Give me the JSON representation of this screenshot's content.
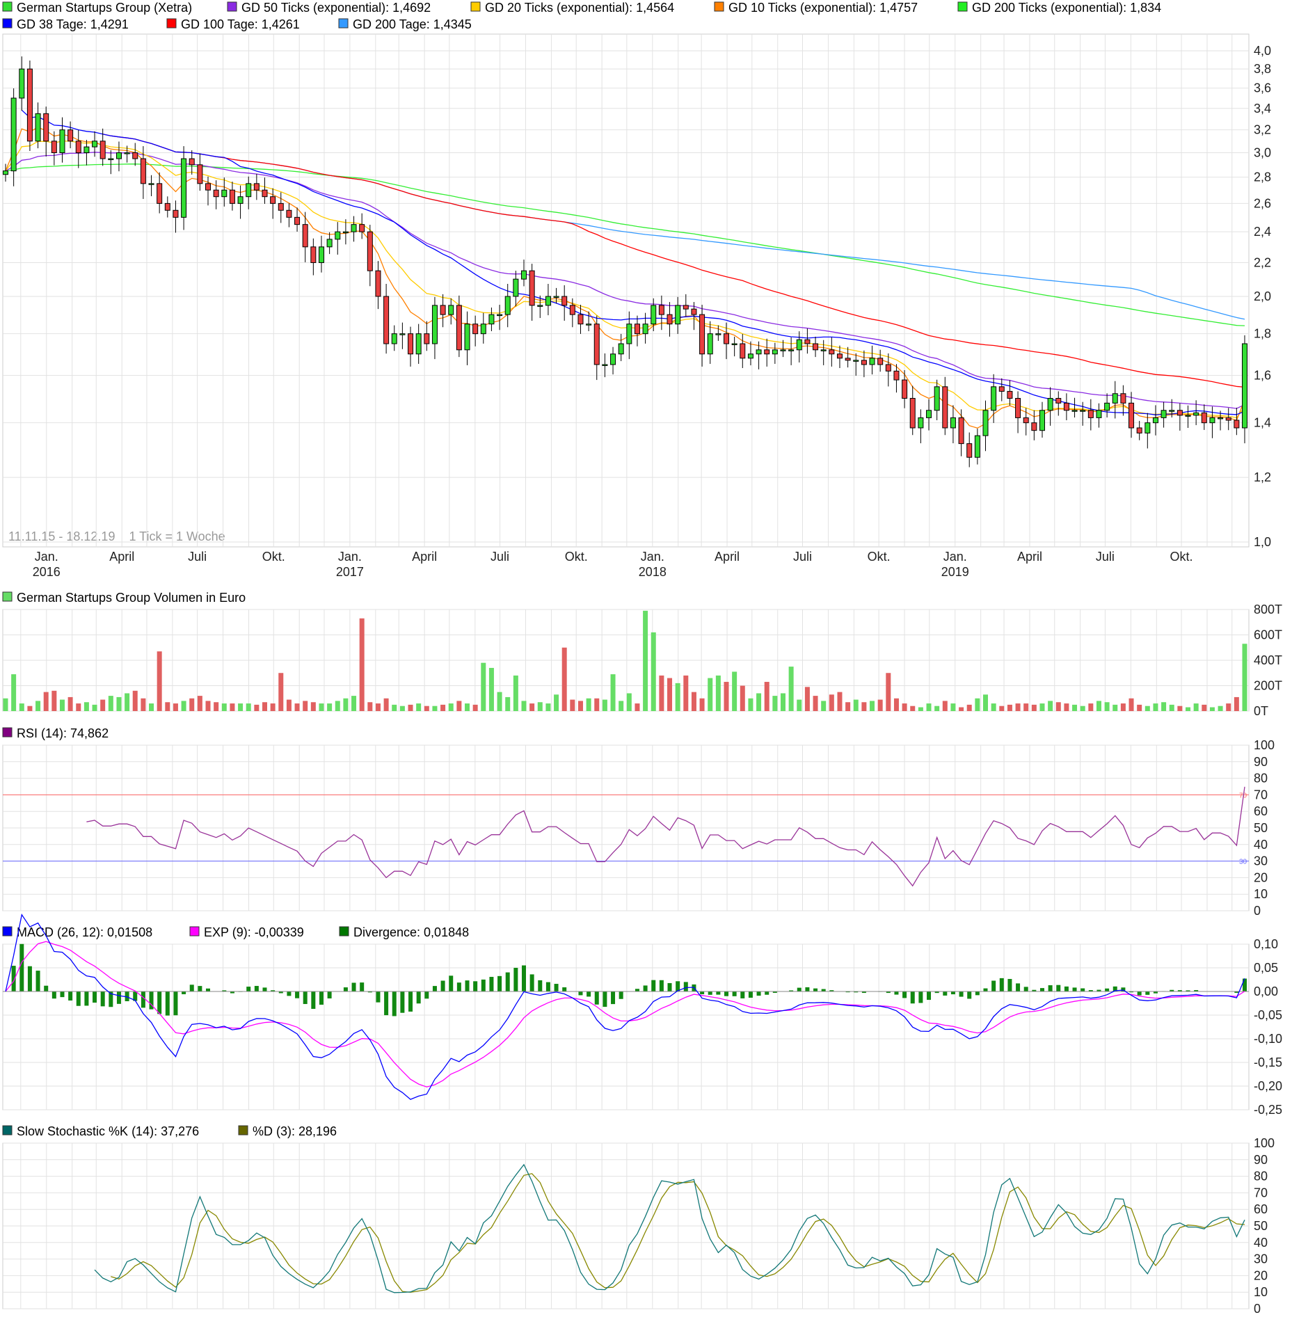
{
  "legend_main": [
    {
      "label": "German Startups Group (Xetra)",
      "color": "#33dd33"
    },
    {
      "label": "GD 50 Ticks (exponential): 1,4692",
      "color": "#8a2be2"
    },
    {
      "label": "GD 20 Ticks (exponential): 1,4564",
      "color": "#ffcc00"
    },
    {
      "label": "GD 10 Ticks (exponential): 1,4757",
      "color": "#ff8000"
    },
    {
      "label": "GD 200 Ticks (exponential): 1,834",
      "color": "#22ee22"
    },
    {
      "label": "GD 38 Tage: 1,4291",
      "color": "#0000ff"
    },
    {
      "label": "GD 100 Tage: 1,4261",
      "color": "#ff0000"
    },
    {
      "label": "GD 200 Tage: 1,4345",
      "color": "#3399ff"
    }
  ],
  "range_text": "11.11.15 - 18.12.19    1 Tick = 1 Woche",
  "legend_volume": {
    "label": "German Startups Group Volumen in Euro",
    "color": "#66dd66"
  },
  "legend_rsi": {
    "label": "RSI (14): 74,862",
    "color": "#800080"
  },
  "legend_macd": [
    {
      "label": "MACD (26, 12): 0,01508",
      "color": "#0000ff"
    },
    {
      "label": "EXP (9): -0,00339",
      "color": "#ff00ff"
    },
    {
      "label": "Divergence: 0,01848",
      "color": "#007700"
    }
  ],
  "legend_stoch": [
    {
      "label": "Slow Stochastic %K (14): 37,276",
      "color": "#006666"
    },
    {
      "label": "%D (3): 28,196",
      "color": "#666600"
    }
  ],
  "chart_data": [
    {
      "type": "candlestick",
      "title": "German Startups Group (Xetra)",
      "scale": "log",
      "ylim": [
        1.0,
        4.0
      ],
      "yticks": [
        "4,0",
        "3,8",
        "3,6",
        "3,4",
        "3,2",
        "3,0",
        "2,8",
        "2,6",
        "2,4",
        "2,2",
        "2,0",
        "1,8",
        "1,6",
        "1,4",
        "1,2",
        "1,0"
      ],
      "x_range": [
        "2015-11-11",
        "2019-12-18"
      ],
      "x_tick_labels": [
        {
          "month": "Jan.",
          "year": "2016",
          "date": "2016-01-01"
        },
        {
          "month": "April",
          "date": "2016-04-01"
        },
        {
          "month": "Juli",
          "date": "2016-07-01"
        },
        {
          "month": "Okt.",
          "date": "2016-10-01"
        },
        {
          "month": "Jan.",
          "year": "2017",
          "date": "2017-01-01"
        },
        {
          "month": "April",
          "date": "2017-04-01"
        },
        {
          "month": "Juli",
          "date": "2017-07-01"
        },
        {
          "month": "Okt.",
          "date": "2017-10-01"
        },
        {
          "month": "Jan.",
          "year": "2018",
          "date": "2018-01-01"
        },
        {
          "month": "April",
          "date": "2018-04-01"
        },
        {
          "month": "Juli",
          "date": "2018-07-01"
        },
        {
          "month": "Okt.",
          "date": "2018-10-01"
        },
        {
          "month": "Jan.",
          "year": "2019",
          "date": "2019-01-01"
        },
        {
          "month": "April",
          "date": "2019-04-01"
        },
        {
          "month": "Juli",
          "date": "2019-07-01"
        },
        {
          "month": "Okt.",
          "date": "2019-10-01"
        }
      ],
      "closes": [
        2.85,
        3.5,
        3.8,
        3.1,
        3.35,
        3.1,
        3.0,
        3.2,
        3.1,
        3.0,
        3.05,
        3.1,
        2.95,
        2.95,
        3.0,
        3.0,
        2.95,
        2.75,
        2.75,
        2.6,
        2.55,
        2.5,
        2.95,
        2.9,
        2.75,
        2.7,
        2.65,
        2.7,
        2.6,
        2.65,
        2.75,
        2.7,
        2.65,
        2.6,
        2.55,
        2.5,
        2.45,
        2.3,
        2.2,
        2.3,
        2.35,
        2.4,
        2.4,
        2.45,
        2.4,
        2.15,
        2.0,
        1.75,
        1.8,
        1.8,
        1.7,
        1.8,
        1.75,
        1.95,
        1.9,
        1.95,
        1.72,
        1.85,
        1.8,
        1.85,
        1.9,
        1.9,
        2.0,
        2.1,
        2.15,
        1.95,
        1.95,
        2.0,
        2.0,
        1.95,
        1.9,
        1.85,
        1.85,
        1.65,
        1.65,
        1.7,
        1.75,
        1.85,
        1.8,
        1.85,
        1.95,
        1.9,
        1.85,
        1.95,
        1.93,
        1.9,
        1.7,
        1.8,
        1.8,
        1.75,
        1.75,
        1.68,
        1.7,
        1.72,
        1.7,
        1.72,
        1.72,
        1.72,
        1.77,
        1.75,
        1.72,
        1.72,
        1.7,
        1.68,
        1.67,
        1.67,
        1.65,
        1.68,
        1.65,
        1.62,
        1.58,
        1.5,
        1.38,
        1.42,
        1.45,
        1.55,
        1.38,
        1.42,
        1.32,
        1.27,
        1.35,
        1.45,
        1.55,
        1.53,
        1.5,
        1.42,
        1.4,
        1.37,
        1.45,
        1.5,
        1.48,
        1.45,
        1.45,
        1.45,
        1.42,
        1.45,
        1.48,
        1.52,
        1.48,
        1.38,
        1.36,
        1.4,
        1.42,
        1.45,
        1.45,
        1.43,
        1.43,
        1.44,
        1.4,
        1.42,
        1.42,
        1.41,
        1.38,
        1.75
      ]
    },
    {
      "type": "bar",
      "title": "German Startups Group Volumen in Euro",
      "ylim": [
        0,
        800
      ],
      "yticks": [
        "800T",
        "600T",
        "400T",
        "200T",
        "0T"
      ],
      "values_T": [
        100,
        290,
        60,
        40,
        80,
        150,
        160,
        90,
        110,
        60,
        70,
        50,
        90,
        120,
        110,
        140,
        160,
        100,
        60,
        470,
        70,
        60,
        80,
        100,
        120,
        80,
        70,
        60,
        60,
        60,
        60,
        50,
        70,
        60,
        300,
        90,
        60,
        80,
        70,
        60,
        60,
        80,
        100,
        120,
        730,
        70,
        60,
        100,
        50,
        40,
        50,
        60,
        40,
        40,
        50,
        60,
        80,
        60,
        50,
        380,
        340,
        150,
        110,
        280,
        80,
        60,
        70,
        60,
        130,
        500,
        90,
        80,
        100,
        100,
        90,
        290,
        80,
        140,
        60,
        790,
        620,
        280,
        260,
        220,
        280,
        150,
        100,
        260,
        280,
        230,
        310,
        200,
        100,
        140,
        230,
        120,
        140,
        350,
        90,
        190,
        120,
        80,
        130,
        150,
        70,
        90,
        70,
        80,
        90,
        300,
        100,
        60,
        40,
        30,
        60,
        40,
        80,
        60,
        30,
        50,
        100,
        130,
        60,
        40,
        50,
        60,
        60,
        50,
        60,
        80,
        70,
        60,
        50,
        40,
        60,
        80,
        70,
        50,
        60,
        100,
        50,
        40,
        60,
        70,
        50,
        40,
        30,
        60,
        50,
        30,
        40,
        60,
        110,
        530
      ]
    },
    {
      "type": "line",
      "title": "RSI (14)",
      "ylim": [
        0,
        100
      ],
      "yticks": [
        "100",
        "90",
        "80",
        "70",
        "60",
        "50",
        "40",
        "30",
        "20",
        "10",
        "0"
      ],
      "levels": [
        "70",
        "30"
      ],
      "last": 74.862
    },
    {
      "type": "line",
      "title": "MACD (26, 12)",
      "ylim": [
        -0.25,
        0.1
      ],
      "yticks": [
        "0,10",
        "0,05",
        "0,00",
        "-0,05",
        "-0,10",
        "-0,15",
        "-0,20",
        "-0,25"
      ],
      "last": {
        "macd": 0.01508,
        "signal": -0.00339,
        "divergence": 0.01848
      }
    },
    {
      "type": "line",
      "title": "Slow Stochastic",
      "ylim": [
        0,
        100
      ],
      "yticks": [
        "100",
        "90",
        "80",
        "70",
        "60",
        "50",
        "40",
        "30",
        "20",
        "10",
        "0"
      ],
      "last": {
        "k": 37.276,
        "d": 28.196
      }
    }
  ]
}
